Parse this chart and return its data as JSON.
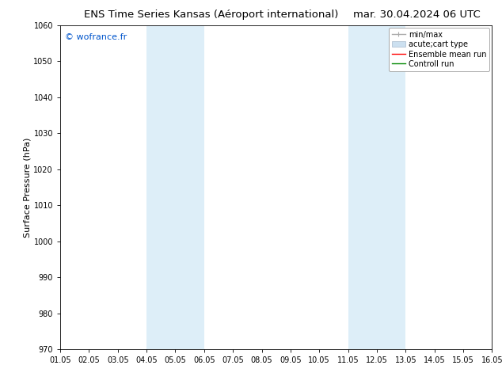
{
  "title_left": "ENS Time Series Kansas (Aéroport international)",
  "title_right": "mar. 30.04.2024 06 UTC",
  "ylabel": "Surface Pressure (hPa)",
  "ylim": [
    970,
    1060
  ],
  "yticks": [
    970,
    980,
    990,
    1000,
    1010,
    1020,
    1030,
    1040,
    1050,
    1060
  ],
  "xlim_start": 0,
  "xlim_end": 15,
  "xtick_labels": [
    "01.05",
    "02.05",
    "03.05",
    "04.05",
    "05.05",
    "06.05",
    "07.05",
    "08.05",
    "09.05",
    "10.05",
    "11.05",
    "12.05",
    "13.05",
    "14.05",
    "15.05",
    "16.05"
  ],
  "shaded_regions": [
    {
      "xstart": 3,
      "xend": 5,
      "color": "#ddeef8"
    },
    {
      "xstart": 10,
      "xend": 12,
      "color": "#ddeef8"
    }
  ],
  "watermark": "© wofrance.fr",
  "watermark_color": "#0055cc",
  "background_color": "#ffffff",
  "plot_bg_color": "#ffffff",
  "legend_items": [
    {
      "label": "min/max",
      "color": "#aaaaaa",
      "lw": 1.0
    },
    {
      "label": "acute;cart type",
      "color": "#cce0f0",
      "lw": 5
    },
    {
      "label": "Ensemble mean run",
      "color": "#ff0000",
      "lw": 1.0
    },
    {
      "label": "Controll run",
      "color": "#008800",
      "lw": 1.0
    }
  ],
  "title_fontsize": 9.5,
  "tick_fontsize": 7,
  "ylabel_fontsize": 8,
  "watermark_fontsize": 8,
  "legend_fontsize": 7
}
